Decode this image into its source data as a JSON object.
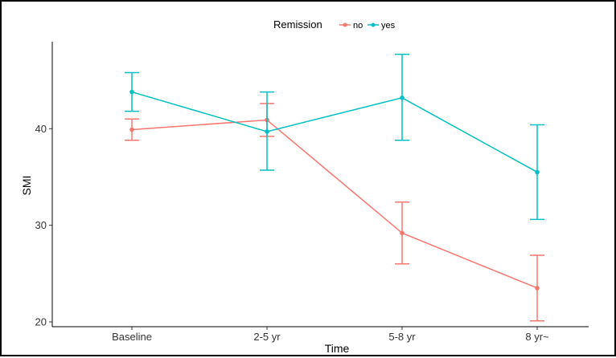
{
  "chart_data": {
    "type": "line",
    "xlabel": "Time",
    "ylabel": "SMI",
    "categories": [
      "Baseline",
      "2-5 yr",
      "5-8 yr",
      "8 yr~"
    ],
    "ylim": [
      19.5,
      49
    ],
    "yticks": [
      20,
      30,
      40
    ],
    "grid": false,
    "legend": {
      "title": "Remission",
      "placement": "top-center",
      "entries": [
        "no",
        "yes"
      ]
    },
    "series": [
      {
        "name": "no",
        "color": "#F8766D",
        "values": [
          39.9,
          40.9,
          29.2,
          23.5
        ],
        "error_low": [
          38.8,
          39.2,
          26.0,
          20.1
        ],
        "error_high": [
          41.0,
          42.6,
          32.4,
          26.9
        ]
      },
      {
        "name": "yes",
        "color": "#00BFC4",
        "values": [
          43.8,
          39.7,
          43.2,
          35.5
        ],
        "error_low": [
          41.8,
          35.7,
          38.8,
          30.6
        ],
        "error_high": [
          45.8,
          43.8,
          47.7,
          40.4
        ]
      }
    ]
  }
}
